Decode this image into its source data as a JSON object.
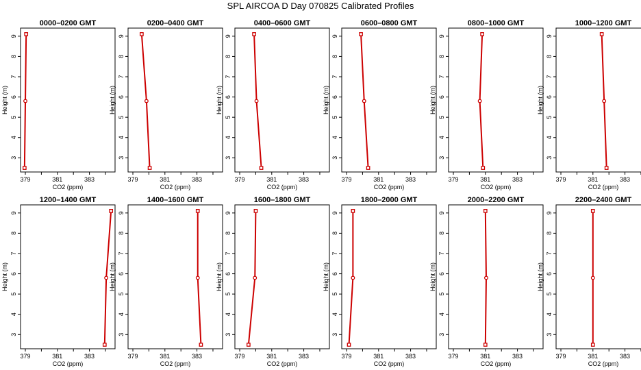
{
  "title": "SPL AIRCOA D  Day 070825  Calibrated Profiles",
  "colors": {
    "profile_line": "#cc0000",
    "frame": "#000000",
    "background": "#ffffff"
  },
  "chart_data": [
    {
      "type": "line",
      "title": "0000–0200 GMT",
      "xlabel": "CO2 (ppm)",
      "ylabel": "Height (m)",
      "xlim": [
        378.7,
        384.6
      ],
      "ylim": [
        2.3,
        9.4
      ],
      "xticks": [
        379,
        381,
        383
      ],
      "yticks": [
        3,
        4,
        5,
        6,
        7,
        8,
        9
      ],
      "heights": [
        2.5,
        5.8,
        9.1
      ],
      "co2": [
        378.95,
        379.0,
        379.05
      ]
    },
    {
      "type": "line",
      "title": "0200–0400 GMT",
      "xlabel": "CO2 (ppm)",
      "ylabel": "Height (m)",
      "xlim": [
        378.7,
        384.6
      ],
      "ylim": [
        2.3,
        9.4
      ],
      "xticks": [
        379,
        381,
        383
      ],
      "yticks": [
        3,
        4,
        5,
        6,
        7,
        8,
        9
      ],
      "heights": [
        2.5,
        5.8,
        9.1
      ],
      "co2": [
        380.05,
        379.85,
        379.55
      ]
    },
    {
      "type": "line",
      "title": "0400–0600 GMT",
      "xlabel": "CO2 (ppm)",
      "ylabel": "Height (m)",
      "xlim": [
        378.7,
        384.6
      ],
      "ylim": [
        2.3,
        9.4
      ],
      "xticks": [
        379,
        381,
        383
      ],
      "yticks": [
        3,
        4,
        5,
        6,
        7,
        8,
        9
      ],
      "heights": [
        2.5,
        5.8,
        9.1
      ],
      "co2": [
        380.35,
        380.05,
        379.9
      ]
    },
    {
      "type": "line",
      "title": "0600–0800 GMT",
      "xlabel": "CO2 (ppm)",
      "ylabel": "Height (m)",
      "xlim": [
        378.7,
        384.6
      ],
      "ylim": [
        2.3,
        9.4
      ],
      "xticks": [
        379,
        381,
        383
      ],
      "yticks": [
        3,
        4,
        5,
        6,
        7,
        8,
        9
      ],
      "heights": [
        2.5,
        5.8,
        9.1
      ],
      "co2": [
        380.35,
        380.1,
        379.9
      ]
    },
    {
      "type": "line",
      "title": "0800–1000 GMT",
      "xlabel": "CO2 (ppm)",
      "ylabel": "Height (m)",
      "xlim": [
        378.7,
        384.6
      ],
      "ylim": [
        2.3,
        9.4
      ],
      "xticks": [
        379,
        381,
        383
      ],
      "yticks": [
        3,
        4,
        5,
        6,
        7,
        8,
        9
      ],
      "heights": [
        2.5,
        5.8,
        9.1
      ],
      "co2": [
        380.85,
        380.65,
        380.8
      ]
    },
    {
      "type": "line",
      "title": "1000–1200 GMT",
      "xlabel": "CO2 (ppm)",
      "ylabel": "Height (m)",
      "xlim": [
        378.7,
        384.6
      ],
      "ylim": [
        2.3,
        9.4
      ],
      "xticks": [
        379,
        381,
        383
      ],
      "yticks": [
        3,
        4,
        5,
        6,
        7,
        8,
        9
      ],
      "heights": [
        2.5,
        5.8,
        9.1
      ],
      "co2": [
        381.85,
        381.7,
        381.55
      ]
    },
    {
      "type": "line",
      "title": "1200–1400 GMT",
      "xlabel": "CO2 (ppm)",
      "ylabel": "Height (m)",
      "xlim": [
        378.7,
        384.6
      ],
      "ylim": [
        2.3,
        9.4
      ],
      "xticks": [
        379,
        381,
        383
      ],
      "yticks": [
        3,
        4,
        5,
        6,
        7,
        8,
        9
      ],
      "heights": [
        2.5,
        5.8,
        9.1
      ],
      "co2": [
        383.95,
        384.05,
        384.35
      ]
    },
    {
      "type": "line",
      "title": "1400–1600 GMT",
      "xlabel": "CO2 (ppm)",
      "ylabel": "Height (m)",
      "xlim": [
        378.7,
        384.6
      ],
      "ylim": [
        2.3,
        9.4
      ],
      "xticks": [
        379,
        381,
        383
      ],
      "yticks": [
        3,
        4,
        5,
        6,
        7,
        8,
        9
      ],
      "heights": [
        2.5,
        5.8,
        9.1
      ],
      "co2": [
        383.25,
        383.05,
        383.05
      ]
    },
    {
      "type": "line",
      "title": "1600–1800 GMT",
      "xlabel": "CO2 (ppm)",
      "ylabel": "Height (m)",
      "xlim": [
        378.7,
        384.6
      ],
      "ylim": [
        2.3,
        9.4
      ],
      "xticks": [
        379,
        381,
        383
      ],
      "yticks": [
        3,
        4,
        5,
        6,
        7,
        8,
        9
      ],
      "heights": [
        2.5,
        5.8,
        9.1
      ],
      "co2": [
        379.55,
        379.95,
        380.0
      ]
    },
    {
      "type": "line",
      "title": "1800–2000 GMT",
      "xlabel": "CO2 (ppm)",
      "ylabel": "Height (m)",
      "xlim": [
        378.7,
        384.6
      ],
      "ylim": [
        2.3,
        9.4
      ],
      "xticks": [
        379,
        381,
        383
      ],
      "yticks": [
        3,
        4,
        5,
        6,
        7,
        8,
        9
      ],
      "heights": [
        2.5,
        5.8,
        9.1
      ],
      "co2": [
        379.15,
        379.4,
        379.4
      ]
    },
    {
      "type": "line",
      "title": "2000–2200 GMT",
      "xlabel": "CO2 (ppm)",
      "ylabel": "Height (m)",
      "xlim": [
        378.7,
        384.6
      ],
      "ylim": [
        2.3,
        9.4
      ],
      "xticks": [
        379,
        381,
        383
      ],
      "yticks": [
        3,
        4,
        5,
        6,
        7,
        8,
        9
      ],
      "heights": [
        2.5,
        5.8,
        9.1
      ],
      "co2": [
        381.0,
        381.05,
        381.0
      ]
    },
    {
      "type": "line",
      "title": "2200–2400 GMT",
      "xlabel": "CO2 (ppm)",
      "ylabel": "Height (m)",
      "xlim": [
        378.7,
        384.6
      ],
      "ylim": [
        2.3,
        9.4
      ],
      "xticks": [
        379,
        381,
        383
      ],
      "yticks": [
        3,
        4,
        5,
        6,
        7,
        8,
        9
      ],
      "heights": [
        2.5,
        5.8,
        9.1
      ],
      "co2": [
        381.0,
        381.0,
        381.0
      ]
    }
  ]
}
